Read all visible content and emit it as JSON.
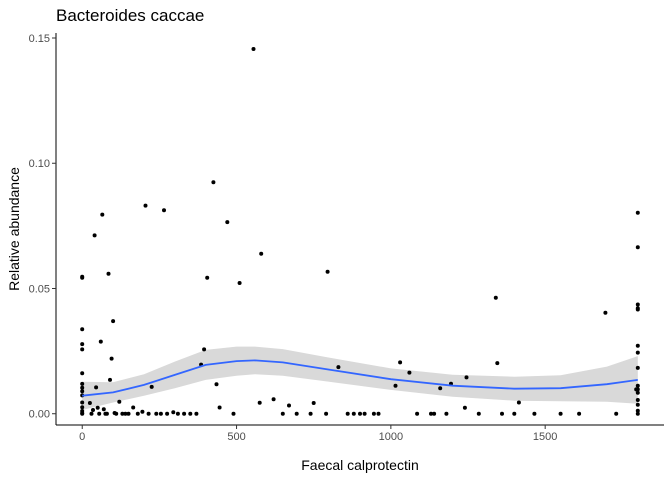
{
  "chart_data": {
    "type": "scatter",
    "title": "Bacteroides caccae",
    "xlabel": "Faecal calprotectin",
    "ylabel": "Relative abundance",
    "xlim": [
      -85,
      1885
    ],
    "ylim": [
      -0.0045,
      0.152
    ],
    "x_ticks": [
      0,
      500,
      1000,
      1500
    ],
    "x_tick_labels": [
      "0",
      "500",
      "1000",
      "1500"
    ],
    "y_ticks": [
      0.0,
      0.05,
      0.1,
      0.15
    ],
    "y_tick_labels": [
      "0.00",
      "0.05",
      "0.10",
      "0.15"
    ],
    "grid": false,
    "colors": {
      "points": "#000000",
      "smooth_line": "#3366FF",
      "confidence_band": "#d9d9d9"
    },
    "points": [
      [
        0,
        0.0547
      ],
      [
        0,
        0.0543
      ],
      [
        0,
        0.0337
      ],
      [
        0,
        0.0278
      ],
      [
        0,
        0.0257
      ],
      [
        0,
        0.0162
      ],
      [
        0,
        0.0119
      ],
      [
        0,
        0.0104
      ],
      [
        0,
        0.009
      ],
      [
        0,
        0.0073
      ],
      [
        0,
        0.0045
      ],
      [
        0,
        0.0026
      ],
      [
        0,
        0.0011
      ],
      [
        0,
        0.0003
      ],
      [
        0,
        0.0
      ],
      [
        25,
        0.0043
      ],
      [
        30,
        0.0
      ],
      [
        35,
        0.0015
      ],
      [
        40,
        0.0712
      ],
      [
        45,
        0.0105
      ],
      [
        50,
        0.0024
      ],
      [
        55,
        0.0
      ],
      [
        60,
        0.0288
      ],
      [
        65,
        0.0795
      ],
      [
        70,
        0.0018
      ],
      [
        75,
        0.0
      ],
      [
        80,
        0.0
      ],
      [
        85,
        0.0559
      ],
      [
        90,
        0.0135
      ],
      [
        95,
        0.022
      ],
      [
        100,
        0.037
      ],
      [
        105,
        0.0003
      ],
      [
        110,
        0.0
      ],
      [
        120,
        0.0048
      ],
      [
        130,
        0.0
      ],
      [
        140,
        0.0
      ],
      [
        150,
        0.0
      ],
      [
        165,
        0.0025
      ],
      [
        180,
        0.0
      ],
      [
        195,
        0.0008
      ],
      [
        205,
        0.0831
      ],
      [
        215,
        0.0
      ],
      [
        225,
        0.0107
      ],
      [
        240,
        0.0
      ],
      [
        255,
        0.0
      ],
      [
        265,
        0.0812
      ],
      [
        275,
        0.0
      ],
      [
        295,
        0.0006
      ],
      [
        310,
        0.0
      ],
      [
        330,
        0.0
      ],
      [
        350,
        0.0
      ],
      [
        370,
        0.0
      ],
      [
        385,
        0.0196
      ],
      [
        395,
        0.0257
      ],
      [
        405,
        0.0543
      ],
      [
        425,
        0.0924
      ],
      [
        435,
        0.0118
      ],
      [
        445,
        0.0025
      ],
      [
        470,
        0.0765
      ],
      [
        490,
        0.0
      ],
      [
        510,
        0.0522
      ],
      [
        555,
        0.1456
      ],
      [
        580,
        0.0639
      ],
      [
        575,
        0.0044
      ],
      [
        620,
        0.0058
      ],
      [
        650,
        0.0
      ],
      [
        670,
        0.0033
      ],
      [
        695,
        0.0
      ],
      [
        740,
        0.0
      ],
      [
        750,
        0.0043
      ],
      [
        790,
        0.0
      ],
      [
        795,
        0.0567
      ],
      [
        830,
        0.0186
      ],
      [
        860,
        0.0
      ],
      [
        880,
        0.0
      ],
      [
        900,
        0.0
      ],
      [
        915,
        0.0
      ],
      [
        945,
        0.0
      ],
      [
        960,
        0.0
      ],
      [
        1015,
        0.0112
      ],
      [
        1030,
        0.0205
      ],
      [
        1060,
        0.0164
      ],
      [
        1085,
        0.0
      ],
      [
        1130,
        0.0
      ],
      [
        1140,
        0.0
      ],
      [
        1160,
        0.0102
      ],
      [
        1180,
        0.0
      ],
      [
        1195,
        0.012
      ],
      [
        1240,
        0.0024
      ],
      [
        1245,
        0.0145
      ],
      [
        1285,
        0.0
      ],
      [
        1340,
        0.0463
      ],
      [
        1345,
        0.0202
      ],
      [
        1360,
        0.0
      ],
      [
        1400,
        0.0
      ],
      [
        1415,
        0.0045
      ],
      [
        1465,
        0.0
      ],
      [
        1550,
        0.0
      ],
      [
        1610,
        0.0
      ],
      [
        1695,
        0.0403
      ],
      [
        1730,
        0.0
      ],
      [
        1795,
        0.0097
      ],
      [
        1800,
        0.0802
      ],
      [
        1800,
        0.0665
      ],
      [
        1800,
        0.0436
      ],
      [
        1800,
        0.0421
      ],
      [
        1800,
        0.0416
      ],
      [
        1800,
        0.0271
      ],
      [
        1800,
        0.0244
      ],
      [
        1800,
        0.0183
      ],
      [
        1800,
        0.0112
      ],
      [
        1800,
        0.0097
      ],
      [
        1800,
        0.0084
      ],
      [
        1800,
        0.0055
      ],
      [
        1800,
        0.0036
      ],
      [
        1800,
        0.0012
      ],
      [
        1800,
        0.0
      ]
    ],
    "smooth_curve": [
      {
        "x": 0,
        "y": 0.0072,
        "lo": 0.0015,
        "hi": 0.0128
      },
      {
        "x": 100,
        "y": 0.0085,
        "lo": 0.0045,
        "hi": 0.0126
      },
      {
        "x": 200,
        "y": 0.0115,
        "lo": 0.0072,
        "hi": 0.0158
      },
      {
        "x": 300,
        "y": 0.0155,
        "lo": 0.0102,
        "hi": 0.0208
      },
      {
        "x": 400,
        "y": 0.0195,
        "lo": 0.0135,
        "hi": 0.0255
      },
      {
        "x": 500,
        "y": 0.021,
        "lo": 0.0152,
        "hi": 0.0268
      },
      {
        "x": 560,
        "y": 0.0213,
        "lo": 0.0158,
        "hi": 0.0268
      },
      {
        "x": 650,
        "y": 0.0205,
        "lo": 0.0152,
        "hi": 0.0258
      },
      {
        "x": 800,
        "y": 0.0176,
        "lo": 0.0128,
        "hi": 0.0224
      },
      {
        "x": 1000,
        "y": 0.0138,
        "lo": 0.0095,
        "hi": 0.0181
      },
      {
        "x": 1200,
        "y": 0.0112,
        "lo": 0.0068,
        "hi": 0.0156
      },
      {
        "x": 1400,
        "y": 0.01,
        "lo": 0.0052,
        "hi": 0.0148
      },
      {
        "x": 1550,
        "y": 0.0102,
        "lo": 0.005,
        "hi": 0.0154
      },
      {
        "x": 1700,
        "y": 0.0118,
        "lo": 0.0048,
        "hi": 0.0188
      },
      {
        "x": 1800,
        "y": 0.0135,
        "lo": 0.004,
        "hi": 0.023
      }
    ]
  }
}
